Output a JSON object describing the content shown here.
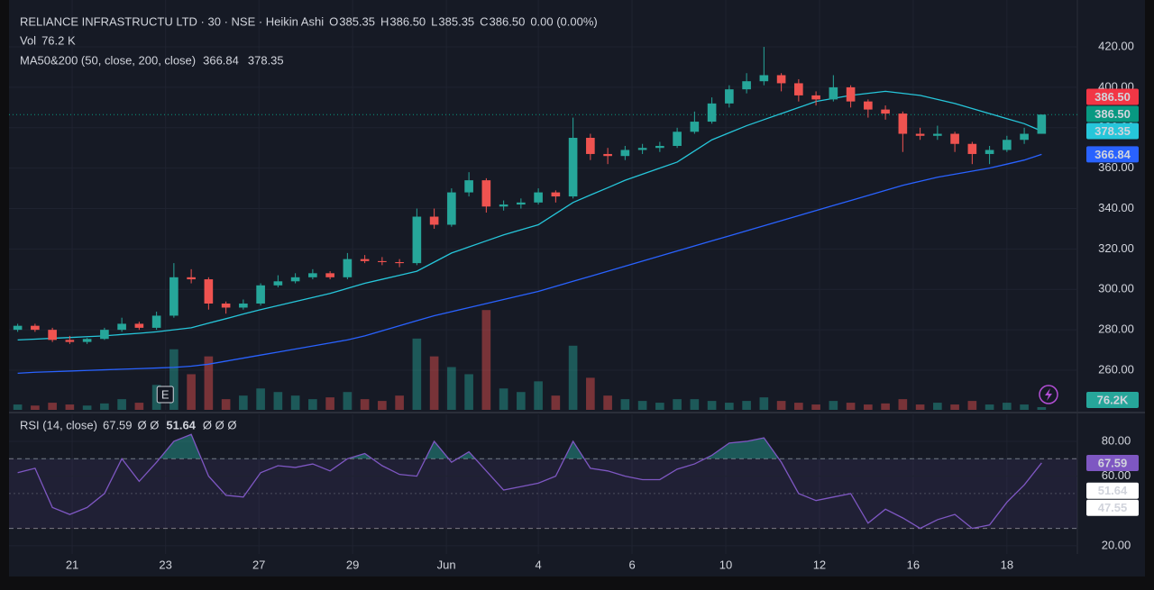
{
  "header": {
    "title": "RELIANCE INFRASTRUCTU LTD · 30 · NSE · Heikin Ashi",
    "ohlc": [
      {
        "key": "O",
        "value": "385.35"
      },
      {
        "key": "H",
        "value": "386.50"
      },
      {
        "key": "L",
        "value": "385.35"
      },
      {
        "key": "C",
        "value": "386.50"
      }
    ],
    "change": "0.00 (0.00%)",
    "vol_title": "Vol",
    "ma_title": "MA50&200 (50, close, 200, close)",
    "rsi_title": "RSI (14, close)",
    "rsi_na_1": "Ø Ø",
    "rsi_na_2": "Ø Ø Ø"
  },
  "chart_data": [
    {
      "type": "candlestick",
      "x": [
        0,
        1,
        2,
        3,
        4,
        5,
        6,
        7,
        8,
        9,
        10,
        11,
        12,
        13,
        14,
        15,
        16,
        17,
        18,
        19,
        20,
        21,
        22,
        23,
        24,
        25,
        26,
        27,
        28,
        29,
        30,
        31,
        32,
        33,
        34,
        35,
        36,
        37,
        38,
        39,
        40,
        41,
        42,
        43,
        44,
        45,
        46,
        47,
        48,
        49,
        50,
        51,
        52,
        53,
        54,
        55,
        56,
        57,
        58,
        59
      ],
      "xlim": [
        -0.5,
        61.06
      ],
      "open": [
        280,
        282,
        280,
        275,
        274,
        275.5,
        280,
        283,
        281,
        287,
        306,
        305,
        293,
        291,
        293,
        302,
        304,
        306,
        308,
        306,
        315,
        314,
        313.5,
        313,
        336,
        332,
        348,
        354,
        341,
        342,
        343,
        348,
        346,
        375,
        367,
        366,
        369,
        370,
        371,
        378,
        383,
        392,
        399,
        403,
        406,
        402,
        396,
        394,
        400,
        393,
        389,
        387,
        377,
        376,
        377,
        372,
        367,
        369,
        374,
        377
      ],
      "high": [
        283,
        283,
        281,
        277,
        276,
        281,
        286,
        284,
        289,
        313,
        310,
        306,
        294,
        295,
        303,
        307,
        308,
        310,
        309,
        318,
        317,
        316,
        315,
        340,
        340,
        350,
        358,
        355,
        344,
        345,
        350,
        349,
        385,
        377,
        370,
        371,
        372,
        373,
        380,
        388,
        395,
        401,
        407,
        420,
        407,
        404,
        398,
        406,
        401,
        394,
        391,
        388,
        380,
        381,
        378,
        373,
        371,
        376,
        380,
        386.5
      ],
      "low": [
        279,
        279,
        274,
        273,
        273,
        275,
        279,
        280,
        280,
        286,
        303,
        290,
        288,
        290,
        292,
        301,
        303,
        305,
        305,
        305,
        313,
        312,
        311,
        312,
        330,
        331,
        346,
        338,
        339,
        340,
        342,
        343,
        345,
        364,
        362,
        364,
        367,
        368,
        370,
        377,
        382,
        390,
        397,
        401,
        398,
        393,
        391,
        393,
        390,
        385,
        384,
        368,
        374,
        374,
        368,
        362,
        362,
        368,
        372,
        377
      ],
      "close": [
        282,
        280,
        275,
        274,
        275.5,
        280,
        283,
        281,
        287,
        306,
        305,
        293,
        291,
        293,
        302,
        304,
        306,
        308,
        306,
        315,
        314,
        313.5,
        313,
        336,
        332,
        348,
        354,
        341,
        342,
        343,
        348,
        346,
        375,
        367,
        366,
        369,
        370,
        371,
        378,
        383,
        392,
        399,
        403,
        406,
        402,
        396,
        394,
        400,
        393,
        389,
        387,
        377,
        376,
        377,
        372,
        367,
        369,
        374,
        377,
        386.5
      ],
      "up_color": "#26a69a",
      "down_color": "#ef5350",
      "ylim": [
        240.4,
        443.2
      ],
      "yticks": [
        {
          "value": 260,
          "label": "260.00"
        },
        {
          "value": 280,
          "label": "280.00"
        },
        {
          "value": 300,
          "label": "300.00"
        },
        {
          "value": 320,
          "label": "320.00"
        },
        {
          "value": 340,
          "label": "340.00"
        },
        {
          "value": 360,
          "label": "360.00"
        },
        {
          "value": 380,
          "label": "380.00"
        },
        {
          "value": 400,
          "label": "400.00"
        },
        {
          "value": 420,
          "label": "420.00"
        }
      ],
      "grid": true,
      "lines": [
        {
          "color": "#2962ff",
          "label": "366.84",
          "values": [
            258.5,
            259,
            259.3,
            259.6,
            259.9,
            260.2,
            260.5,
            260.8,
            261.1,
            261.4,
            262,
            263,
            264.5,
            266,
            267.5,
            269,
            270.5,
            272,
            273.5,
            275,
            277,
            279.5,
            282,
            284.5,
            287,
            289,
            291,
            293,
            295,
            297,
            299,
            301.5,
            304,
            306.5,
            309,
            311.5,
            314,
            316.5,
            319,
            321.5,
            324,
            326.5,
            329,
            331.5,
            334,
            336.5,
            339,
            341.5,
            344,
            346.5,
            349,
            351.5,
            353.5,
            355.5,
            357,
            358.5,
            360,
            362,
            364,
            366.84
          ]
        },
        {
          "color": "#26c6da",
          "label": "378.35",
          "values": [
            275,
            275.4,
            275.8,
            276.2,
            276.6,
            277,
            277.7,
            278.3,
            279,
            280,
            281,
            283.3,
            285.5,
            287.8,
            290,
            292,
            294,
            296,
            298,
            300.5,
            303,
            305,
            307,
            309,
            313.5,
            318,
            321,
            324,
            327,
            329.5,
            332,
            337.5,
            343,
            346.7,
            350.3,
            354,
            357,
            360,
            363,
            368.5,
            374,
            377.5,
            381,
            384,
            387,
            390,
            393,
            394.5,
            396,
            397,
            398,
            397,
            396,
            394,
            392,
            389.5,
            387,
            384.5,
            382,
            378.35
          ]
        }
      ],
      "price_tags": [
        {
          "value": 386.5,
          "label": "386.50",
          "color": "#f23645"
        },
        {
          "value": 386.5,
          "label": "386.50",
          "color": "#089981"
        }
      ],
      "last_price": {
        "value": 386.5,
        "color": "#089981"
      },
      "volume": {
        "ylim": [
          0,
          11500
        ],
        "label": "76.2 K",
        "tag_label": "76.2K",
        "values": [
          150,
          120,
          200,
          150,
          120,
          180,
          300,
          200,
          700,
          1700,
          1000,
          1500,
          300,
          400,
          600,
          500,
          400,
          300,
          350,
          500,
          300,
          250,
          400,
          2000,
          1500,
          1200,
          1000,
          2800,
          600,
          500,
          800,
          400,
          1800,
          900,
          400,
          300,
          250,
          200,
          300,
          300,
          250,
          200,
          250,
          350,
          250,
          200,
          150,
          250,
          200,
          150,
          180,
          300,
          150,
          200,
          150,
          250,
          150,
          200,
          150,
          76.2
        ]
      },
      "earnings_marker": {
        "label": "E",
        "x": 8.5
      }
    },
    {
      "type": "line",
      "x": [
        0,
        1,
        2,
        3,
        4,
        5,
        6,
        7,
        8,
        9,
        10,
        11,
        12,
        13,
        14,
        15,
        16,
        17,
        18,
        19,
        20,
        21,
        22,
        23,
        24,
        25,
        26,
        27,
        28,
        29,
        30,
        31,
        32,
        33,
        34,
        35,
        36,
        37,
        38,
        39,
        40,
        41,
        42,
        43,
        44,
        45,
        46,
        47,
        48,
        49,
        50,
        51,
        52,
        53,
        54,
        55,
        56,
        57,
        58,
        59
      ],
      "xlim": [
        -0.5,
        61.06
      ],
      "xticks": [
        {
          "value": 3.14,
          "label": "21"
        },
        {
          "value": 8.52,
          "label": "23"
        },
        {
          "value": 13.9,
          "label": "27"
        },
        {
          "value": 19.3,
          "label": "29"
        },
        {
          "value": 24.7,
          "label": "Jun"
        },
        {
          "value": 30.0,
          "label": "4"
        },
        {
          "value": 35.4,
          "label": "6"
        },
        {
          "value": 40.8,
          "label": "10"
        },
        {
          "value": 46.2,
          "label": "12"
        },
        {
          "value": 51.6,
          "label": "16"
        },
        {
          "value": 57.0,
          "label": "18"
        }
      ],
      "ylim": [
        15.3,
        95.5
      ],
      "yticks": [
        {
          "value": 20,
          "label": "20.00"
        },
        {
          "value": 60,
          "label": "60.00"
        },
        {
          "value": 80,
          "label": "80.00"
        }
      ],
      "band": [
        30,
        70
      ],
      "middle": 50,
      "series": [
        {
          "color": "#7e57c2",
          "label": "67.59",
          "values": [
            62,
            64.5,
            42,
            38,
            42,
            50,
            70,
            57,
            68,
            80,
            84,
            60,
            49,
            48,
            62,
            66,
            65,
            67,
            63,
            70,
            73,
            66,
            61,
            60,
            80,
            68,
            74,
            63,
            52,
            54,
            56,
            60,
            80,
            64.5,
            63,
            60,
            58,
            58,
            64,
            67,
            72,
            79,
            80,
            82,
            68,
            50,
            46,
            48,
            50,
            33,
            41,
            36,
            30,
            35,
            38,
            30,
            32,
            45,
            55,
            67.59
          ]
        }
      ],
      "levels": [
        {
          "value": 51.64,
          "label": "51.64"
        },
        {
          "value": 47.55,
          "label": "47.55"
        }
      ]
    }
  ]
}
